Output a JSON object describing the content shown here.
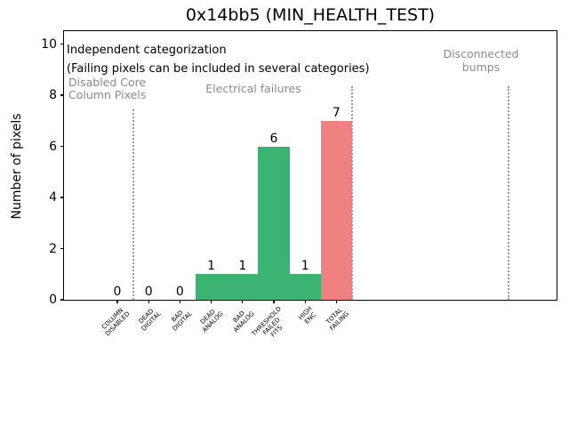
{
  "figure": {
    "title": "0x14bb5 (MIN_HEALTH_TEST)"
  },
  "chart_data": {
    "type": "bar",
    "title": "0x14bb5 (MIN_HEALTH_TEST)",
    "xlabel": "",
    "ylabel": "Number of pixels",
    "categories": [
      [
        "COLUMN",
        "DISABLED"
      ],
      [
        "DEAD",
        "DIGITAL"
      ],
      [
        "BAD",
        "DIGITAL"
      ],
      [
        "DEAD",
        "ANALOG"
      ],
      [
        "BAD",
        "ANALOG"
      ],
      [
        "THRESHOLD",
        "FAILED",
        "FITS"
      ],
      [
        "HIGH",
        "ENC"
      ],
      [
        "TOTAL",
        "FAILING"
      ]
    ],
    "values": [
      0,
      0,
      0,
      1,
      1,
      6,
      1,
      7
    ],
    "bar_colors": [
      "#3cb371",
      "#3cb371",
      "#3cb371",
      "#3cb371",
      "#3cb371",
      "#3cb371",
      "#3cb371",
      "#f08080"
    ],
    "yticks": [
      0,
      2,
      4,
      6,
      8,
      10
    ],
    "ylim": [
      0,
      10.5
    ],
    "grid": false,
    "legend": null,
    "vlines": [
      {
        "x": 0.5,
        "style": "dotted",
        "color": "#999999"
      },
      {
        "x": 7.5,
        "style": "dotted",
        "color": "#999999"
      },
      {
        "x": 12.5,
        "style": "dotted",
        "color": "#999999"
      }
    ],
    "annotations": {
      "independent": "Independent categorization",
      "failing": "(Failing pixels can be included in several categories)",
      "disabled_line1": "Disabled Core",
      "disabled_line2": "Column Pixels",
      "electrical": "Electrical failures",
      "disconnected_line1": "Disconnected",
      "disconnected_line2": "bumps"
    },
    "colors": {
      "pass_green": "#3cb371",
      "fail_red": "#f08080",
      "annotation_gray": "#8a8a8a",
      "vline_gray": "#999999"
    }
  }
}
